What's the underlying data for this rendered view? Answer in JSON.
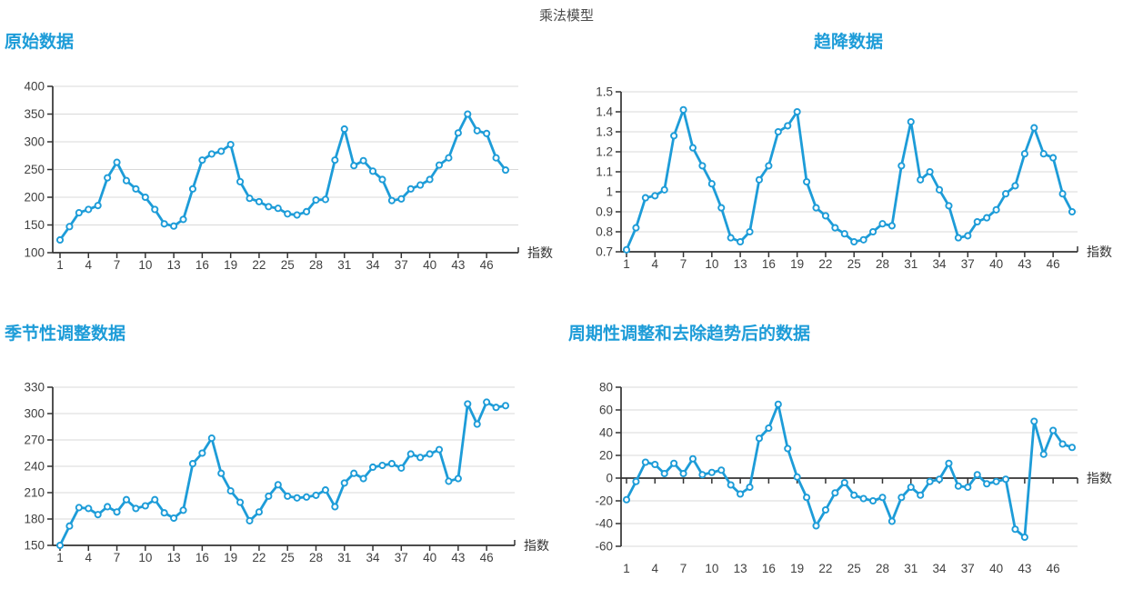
{
  "page": {
    "title": "乘法模型"
  },
  "colors": {
    "accent": "#1d9cd8",
    "grid": "#d9d9d9",
    "axis": "#333333",
    "tick_text": "#404040"
  },
  "chart_data": [
    {
      "type": "line",
      "title": "原始数据",
      "xlabel": "指数",
      "ylabel": "",
      "x": [
        1,
        2,
        3,
        4,
        5,
        6,
        7,
        8,
        9,
        10,
        11,
        12,
        13,
        14,
        15,
        16,
        17,
        18,
        19,
        20,
        21,
        22,
        23,
        24,
        25,
        26,
        27,
        28,
        29,
        30,
        31,
        32,
        33,
        34,
        35,
        36,
        37,
        38,
        39,
        40,
        41,
        42,
        43,
        44,
        45,
        46,
        47,
        48
      ],
      "values": [
        123,
        147,
        172,
        178,
        185,
        235,
        263,
        230,
        215,
        200,
        178,
        152,
        148,
        160,
        215,
        267,
        278,
        283,
        295,
        228,
        198,
        192,
        183,
        180,
        170,
        168,
        174,
        195,
        196,
        267,
        323,
        257,
        266,
        247,
        232,
        194,
        197,
        215,
        222,
        232,
        258,
        271,
        316,
        350,
        320,
        315,
        271,
        249
      ],
      "x_ticks": [
        1,
        4,
        7,
        10,
        13,
        16,
        19,
        22,
        25,
        28,
        31,
        34,
        37,
        40,
        43,
        46
      ],
      "y_ticks": [
        400,
        350,
        300,
        250,
        200,
        150,
        100
      ],
      "ylim": [
        100,
        400
      ],
      "grid": true,
      "legend": "none",
      "zero_axis": false
    },
    {
      "type": "line",
      "title": "趋降数据",
      "xlabel": "指数",
      "ylabel": "",
      "x": [
        1,
        2,
        3,
        4,
        5,
        6,
        7,
        8,
        9,
        10,
        11,
        12,
        13,
        14,
        15,
        16,
        17,
        18,
        19,
        20,
        21,
        22,
        23,
        24,
        25,
        26,
        27,
        28,
        29,
        30,
        31,
        32,
        33,
        34,
        35,
        36,
        37,
        38,
        39,
        40,
        41,
        42,
        43,
        44,
        45,
        46,
        47,
        48
      ],
      "values": [
        0.71,
        0.82,
        0.97,
        0.98,
        1.01,
        1.28,
        1.41,
        1.22,
        1.13,
        1.04,
        0.92,
        0.77,
        0.75,
        0.8,
        1.06,
        1.13,
        1.3,
        1.33,
        1.4,
        1.05,
        0.92,
        0.88,
        0.82,
        0.79,
        0.75,
        0.76,
        0.8,
        0.84,
        0.83,
        1.13,
        1.35,
        1.06,
        1.1,
        1.01,
        0.93,
        0.77,
        0.78,
        0.85,
        0.87,
        0.91,
        0.99,
        1.03,
        1.19,
        1.32,
        1.19,
        1.17,
        0.99,
        0.9
      ],
      "x_ticks": [
        1,
        4,
        7,
        10,
        13,
        16,
        19,
        22,
        25,
        28,
        31,
        34,
        37,
        40,
        43,
        46
      ],
      "y_ticks": [
        1.5,
        1.4,
        1.3,
        1.2,
        1.1,
        1,
        0.9,
        0.8,
        0.7
      ],
      "ylim": [
        0.7,
        1.5
      ],
      "grid": true,
      "legend": "none",
      "zero_axis": false
    },
    {
      "type": "line",
      "title": "季节性调整数据",
      "xlabel": "指数",
      "ylabel": "",
      "x": [
        1,
        2,
        3,
        4,
        5,
        6,
        7,
        8,
        9,
        10,
        11,
        12,
        13,
        14,
        15,
        16,
        17,
        18,
        19,
        20,
        21,
        22,
        23,
        24,
        25,
        26,
        27,
        28,
        29,
        30,
        31,
        32,
        33,
        34,
        35,
        36,
        37,
        38,
        39,
        40,
        41,
        42,
        43,
        44,
        45,
        46,
        47,
        48
      ],
      "values": [
        150,
        172,
        193,
        192,
        185,
        194,
        188,
        202,
        192,
        195,
        202,
        187,
        181,
        190,
        243,
        255,
        272,
        232,
        212,
        199,
        178,
        188,
        206,
        219,
        206,
        204,
        205,
        207,
        213,
        194,
        221,
        232,
        226,
        239,
        241,
        243,
        238,
        254,
        250,
        254,
        259,
        223,
        226,
        311,
        288,
        313,
        307,
        309
      ],
      "x_ticks": [
        1,
        4,
        7,
        10,
        13,
        16,
        19,
        22,
        25,
        28,
        31,
        34,
        37,
        40,
        43,
        46
      ],
      "y_ticks": [
        330,
        300,
        270,
        240,
        210,
        180,
        150
      ],
      "ylim": [
        150,
        330
      ],
      "grid": true,
      "legend": "none",
      "zero_axis": false
    },
    {
      "type": "line",
      "title": "周期性调整和去除趋势后的数据",
      "xlabel": "指数",
      "ylabel": "",
      "x": [
        1,
        2,
        3,
        4,
        5,
        6,
        7,
        8,
        9,
        10,
        11,
        12,
        13,
        14,
        15,
        16,
        17,
        18,
        19,
        20,
        21,
        22,
        23,
        24,
        25,
        26,
        27,
        28,
        29,
        30,
        31,
        32,
        33,
        34,
        35,
        36,
        37,
        38,
        39,
        40,
        41,
        42,
        43,
        44,
        45,
        46,
        47,
        48
      ],
      "values": [
        -19,
        -3,
        14,
        12,
        4,
        13,
        4,
        17,
        3,
        5,
        7,
        -6,
        -14,
        -8,
        35,
        44,
        65,
        26,
        1,
        -17,
        -42,
        -28,
        -13,
        -4,
        -15,
        -18,
        -20,
        -17,
        -38,
        -17,
        -8,
        -15,
        -3,
        -1,
        13,
        -7,
        -8,
        3,
        -5,
        -3,
        -1,
        -45,
        -52,
        50,
        21,
        42,
        30,
        27
      ],
      "x_ticks": [
        1,
        4,
        7,
        10,
        13,
        16,
        19,
        22,
        25,
        28,
        31,
        34,
        37,
        40,
        43,
        46
      ],
      "y_ticks": [
        80,
        60,
        40,
        20,
        0,
        -20,
        -40,
        -60
      ],
      "ylim": [
        -60,
        80
      ],
      "grid": true,
      "legend": "none",
      "zero_axis": true
    }
  ]
}
